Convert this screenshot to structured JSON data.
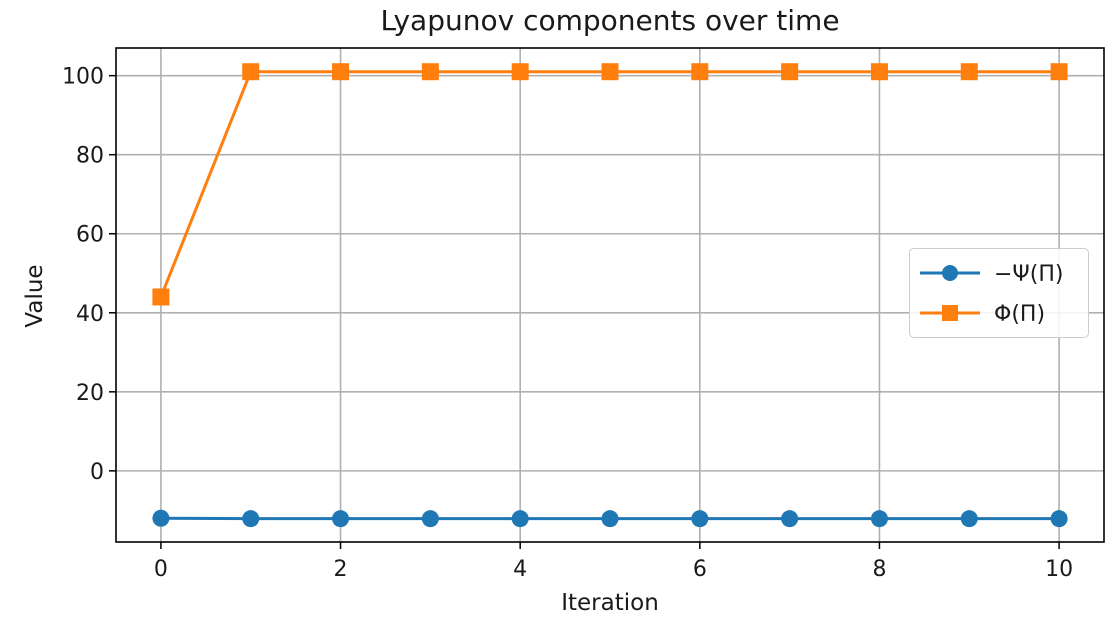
{
  "chart_data": {
    "type": "line",
    "title": "Lyapunov components over time",
    "xlabel": "Iteration",
    "ylabel": "Value",
    "x": [
      0,
      1,
      2,
      3,
      4,
      5,
      6,
      7,
      8,
      9,
      10
    ],
    "xlim": [
      -0.5,
      10.5
    ],
    "ylim": [
      -18,
      107
    ],
    "x_ticks": [
      0,
      2,
      4,
      6,
      8,
      10
    ],
    "y_ticks": [
      0,
      20,
      40,
      60,
      80,
      100
    ],
    "grid": true,
    "legend_position": "center-right",
    "series": [
      {
        "name": "−Ψ(Π)",
        "color": "#1f77b4",
        "marker": "circle",
        "values": [
          -12,
          -12.1,
          -12.1,
          -12.1,
          -12.1,
          -12.1,
          -12.1,
          -12.1,
          -12.1,
          -12.1,
          -12.1
        ]
      },
      {
        "name": "Φ(Π)",
        "color": "#ff7f0e",
        "marker": "square",
        "values": [
          44,
          101,
          101,
          101,
          101,
          101,
          101,
          101,
          101,
          101,
          101
        ]
      }
    ]
  }
}
